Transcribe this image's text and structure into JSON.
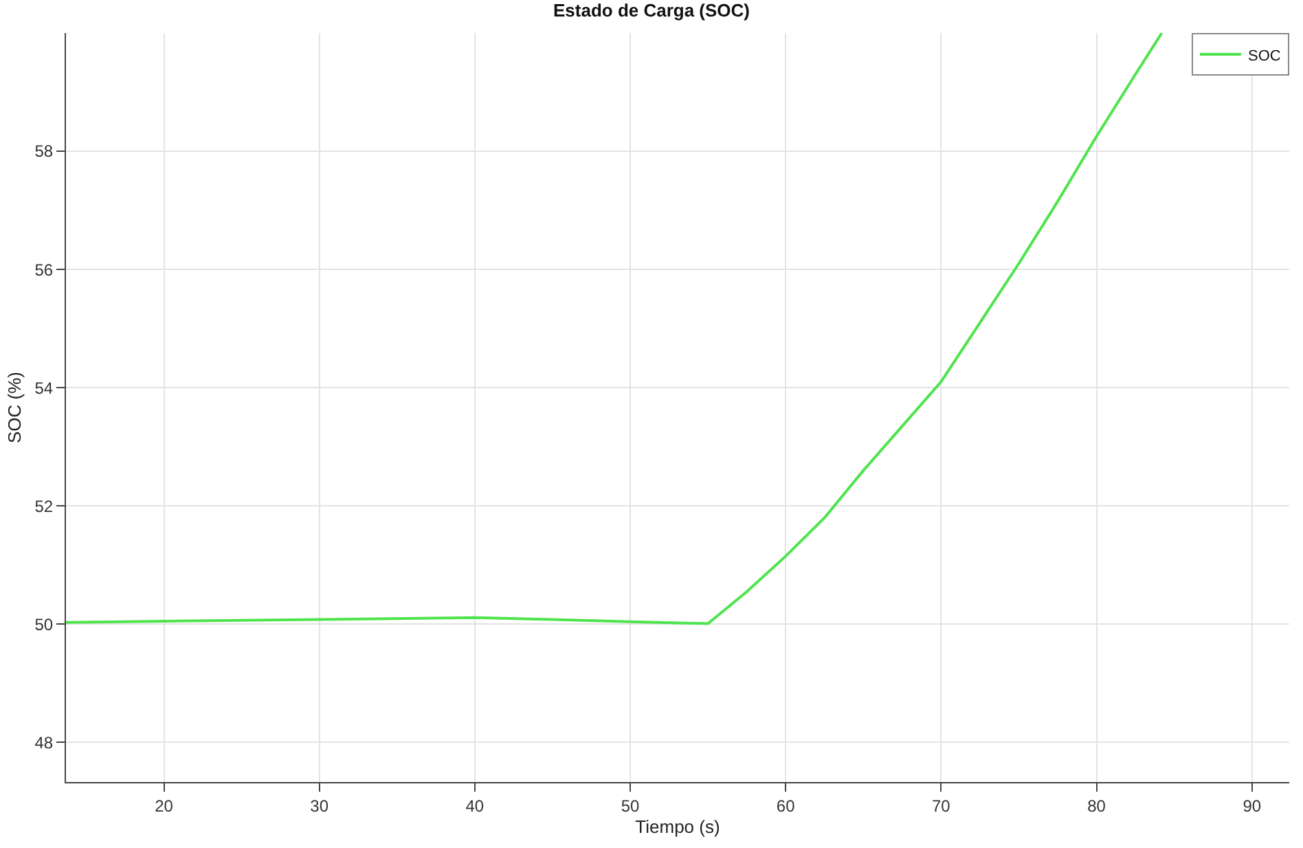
{
  "chart_data": {
    "type": "line",
    "title": "Estado de Carga (SOC)",
    "xlabel": "Tiempo (s)",
    "ylabel": "SOC (%)",
    "series": [
      {
        "name": "SOC",
        "color": "#4ee44e",
        "x": [
          13.7,
          20,
          30,
          40,
          45,
          50,
          55,
          57.5,
          60,
          62.5,
          65,
          67.5,
          70,
          72.5,
          75,
          77.5,
          80,
          82.5,
          84.2
        ],
        "values": [
          50.03,
          50.05,
          50.08,
          50.11,
          50.08,
          50.04,
          50.01,
          50.55,
          51.15,
          51.8,
          52.6,
          53.35,
          54.1,
          55.1,
          56.1,
          57.15,
          58.25,
          59.3,
          60.0
        ]
      }
    ],
    "xlim": [
      13.7,
      92.4
    ],
    "ylim": [
      47.33,
      60
    ],
    "xticks": [
      20,
      30,
      40,
      50,
      60,
      70,
      80,
      90
    ],
    "yticks": [
      48,
      50,
      52,
      54,
      56,
      58
    ],
    "grid": true,
    "legend": "top right",
    "line_style": "solid",
    "marker": "none"
  }
}
